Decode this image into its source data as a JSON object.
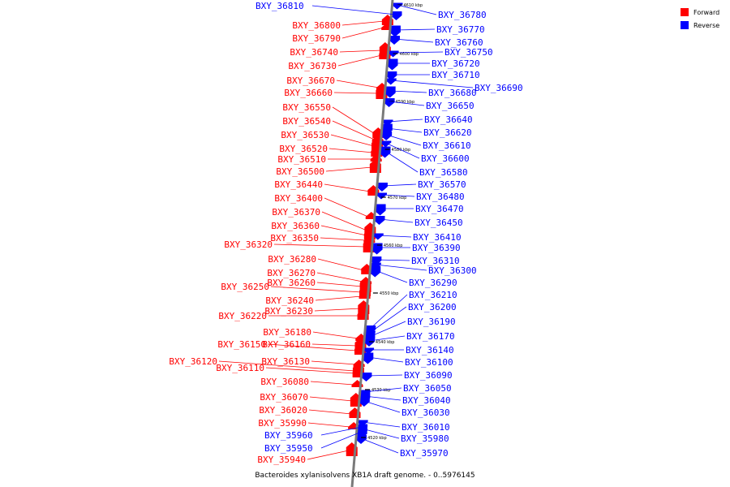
{
  "caption": "Bacteroides xylanisolvens XB1A draft genome. - 0..5976145",
  "legend": [
    {
      "label": "Forward",
      "color": "#ff0000"
    },
    {
      "label": "Reverse",
      "color": "#0000ff"
    }
  ],
  "ticks": [
    "4610 kbp",
    "4600 kbp",
    "4590 kbp",
    "4580 kbp",
    "4570 kbp",
    "4560 kbp",
    "4550 kbp",
    "4540 kbp",
    "4530 kbp",
    "4520 kbp"
  ],
  "forward_genes": [
    "BXY_36800",
    "BXY_36790",
    "BXY_36740",
    "BXY_36730",
    "BXY_36670",
    "BXY_36660",
    "BXY_36550",
    "BXY_36540",
    "BXY_36530",
    "BXY_36520",
    "BXY_36510",
    "BXY_36500",
    "BXY_36440",
    "BXY_36400",
    "BXY_36370",
    "BXY_36360",
    "BXY_36350",
    "BXY_36320",
    "BXY_36280",
    "BXY_36270",
    "BXY_36260",
    "BXY_36250",
    "BXY_36240",
    "BXY_36230",
    "BXY_36220",
    "BXY_36180",
    "BXY_36160",
    "BXY_36150",
    "BXY_36130",
    "BXY_36120",
    "BXY_36110",
    "BXY_36080",
    "BXY_36070",
    "BXY_36020",
    "BXY_35990",
    "BXY_35940"
  ],
  "reverse_genes": [
    "BXY_36810",
    "BXY_36780",
    "BXY_36770",
    "BXY_36760",
    "BXY_36750",
    "BXY_36720",
    "BXY_36710",
    "BXY_36690",
    "BXY_36680",
    "BXY_36650",
    "BXY_36640",
    "BXY_36620",
    "BXY_36610",
    "BXY_36600",
    "BXY_36580",
    "BXY_36570",
    "BXY_36480",
    "BXY_36470",
    "BXY_36450",
    "BXY_36410",
    "BXY_36390",
    "BXY_36310",
    "BXY_36300",
    "BXY_36290",
    "BXY_36210",
    "BXY_36200",
    "BXY_36190",
    "BXY_36170",
    "BXY_36140",
    "BXY_36100",
    "BXY_36090",
    "BXY_36050",
    "BXY_36040",
    "BXY_36030",
    "BXY_36010",
    "BXY_35980",
    "BXY_35970",
    "BXY_35960",
    "BXY_35950"
  ]
}
